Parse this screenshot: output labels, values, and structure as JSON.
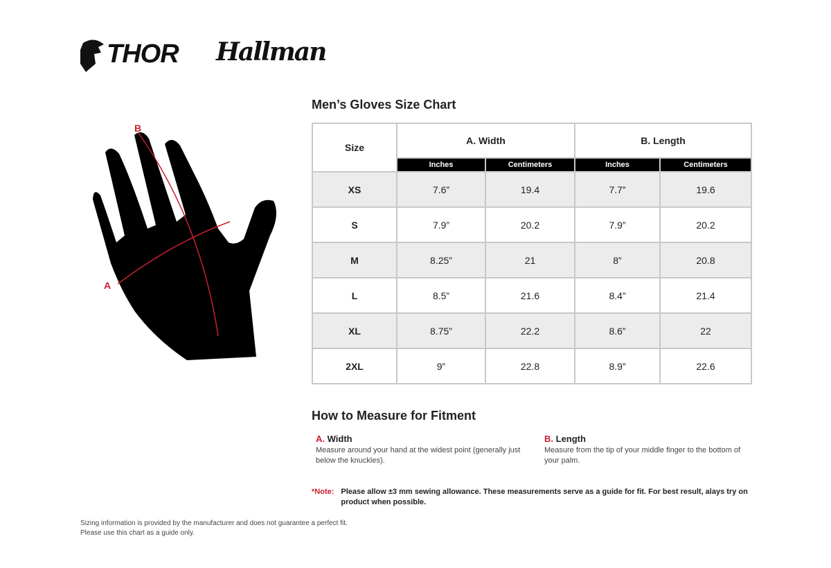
{
  "brand": {
    "logo1": "THOR",
    "logo2": "Hallman"
  },
  "title": "Men’s Gloves Size Chart",
  "diagram": {
    "label_a": "A",
    "label_b": "B",
    "accent": "#c8202f"
  },
  "table": {
    "size_header": "Size",
    "groups": [
      "A. Width",
      "B. Length"
    ],
    "units": [
      "Inches",
      "Centimeters",
      "Inches",
      "Centimeters"
    ],
    "rows": [
      [
        "XS",
        "7.6”",
        "19.4",
        "7.7”",
        "19.6"
      ],
      [
        "S",
        "7.9”",
        "20.2",
        "7.9”",
        "20.2"
      ],
      [
        "M",
        "8.25”",
        "21",
        "8”",
        "20.8"
      ],
      [
        "L",
        "8.5”",
        "21.6",
        "8.4”",
        "21.4"
      ],
      [
        "XL",
        "8.75”",
        "22.2",
        "8.6”",
        "22"
      ],
      [
        "2XL",
        "9”",
        "22.8",
        "8.9”",
        "22.6"
      ]
    ]
  },
  "howto": {
    "title": "How to Measure for Fitment",
    "a": {
      "letter": "A.",
      "label": "Width",
      "text": "Measure around your hand at the widest point (generally just below the knuckles)."
    },
    "b": {
      "letter": "B.",
      "label": "Length",
      "text": "Measure from the tip of your middle finger to the bottom of your palm."
    }
  },
  "note": {
    "label": "*Note:",
    "text": "Please allow ±3 mm sewing allowance. These measurements serve as a guide for fit. For best result, alays try on product when possible."
  },
  "footer": [
    "Sizing information is provided by the manufacturer and does not guarantee a perfect fit.",
    "Please use this chart as a guide only."
  ]
}
